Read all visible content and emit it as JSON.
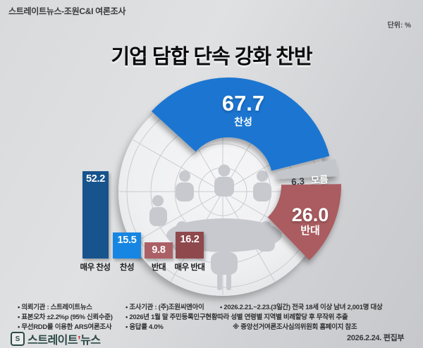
{
  "header": {
    "source": "스트레이트뉴스-조원C&I 여론조사",
    "unit": "단위: %",
    "title": "기업 담합 단속 강화 찬반"
  },
  "chart_data": [
    {
      "type": "pie",
      "subtype": "exploded-donut-gauge",
      "title": "기업 담합 단속 강화 찬반",
      "unit": "%",
      "labels": [
        "찬성",
        "모름",
        "반대"
      ],
      "values": [
        67.7,
        6.3,
        26.0
      ],
      "value_labels": [
        "67.7",
        "6.3",
        "26.0"
      ],
      "colors": [
        "#1b76d1",
        "#c3c6cb",
        "#aa5c60"
      ],
      "explode_offsets": [
        0,
        7,
        13
      ],
      "legend_position": "on-slice"
    },
    {
      "type": "bar",
      "categories": [
        "매우 찬성",
        "찬성",
        "반대",
        "매우 반대"
      ],
      "values": [
        52.2,
        15.5,
        9.8,
        16.2
      ],
      "value_labels": [
        "52.2",
        "15.5",
        "9.8",
        "16.2"
      ],
      "colors": [
        "#17538c",
        "#1786e2",
        "#ab6065",
        "#8f494d"
      ],
      "unit": "%",
      "ylim": [
        0,
        55
      ],
      "grid": false,
      "value_label_position": "inside-top"
    }
  ],
  "footnotes": {
    "rows": [
      {
        "cells": [
          "• 의뢰기관 : 스트레이트뉴스",
          "• 조사기관 : (주)조원씨앤아이",
          "• 2026.2.21.~2.23.(3일간) 전국 18세 이상 남녀 2,001명 대상"
        ]
      },
      {
        "cells": [
          "• 표본오차 ±2.2%p (95% 신뢰수준)",
          "• 2026년 1월 말 주민등록인구현황따라 성별 연령별 지역별 비례할당 후 무작위 추출"
        ]
      },
      {
        "cells": [
          "• 무선RDD를 이용한 ARS여론조사",
          "• 응답률 4.0%",
          "※ 중앙선거여론조사심의위원회 홈페이지 참조"
        ]
      }
    ]
  },
  "footer": {
    "logo_icon": "S",
    "logo_text_1": "스트레이트",
    "logo_accent": "’",
    "logo_text_2": "뉴스",
    "date_line": "2026.2.24.  편집부"
  }
}
